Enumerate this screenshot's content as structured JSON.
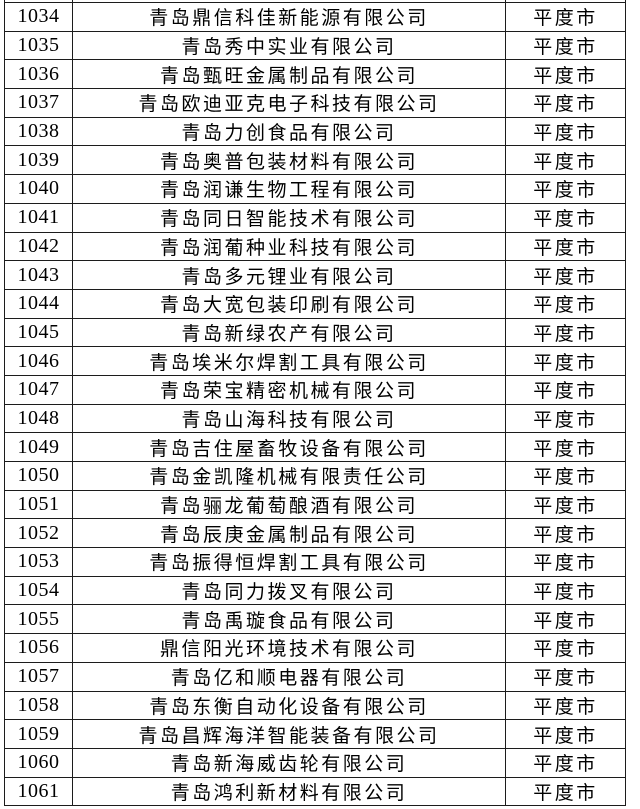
{
  "colors": {
    "background": "#ffffff",
    "border": "#1c1c1c",
    "text": "#000000"
  },
  "table": {
    "description": "company-list-table-slice",
    "rows": [
      {
        "id": "1034",
        "name": "青岛鼎信科佳新能源有限公司",
        "city": "平度市"
      },
      {
        "id": "1035",
        "name": "青岛秀中实业有限公司",
        "city": "平度市"
      },
      {
        "id": "1036",
        "name": "青岛甄旺金属制品有限公司",
        "city": "平度市"
      },
      {
        "id": "1037",
        "name": "青岛欧迪亚克电子科技有限公司",
        "city": "平度市"
      },
      {
        "id": "1038",
        "name": "青岛力创食品有限公司",
        "city": "平度市"
      },
      {
        "id": "1039",
        "name": "青岛奥普包装材料有限公司",
        "city": "平度市"
      },
      {
        "id": "1040",
        "name": "青岛润谦生物工程有限公司",
        "city": "平度市"
      },
      {
        "id": "1041",
        "name": "青岛同日智能技术有限公司",
        "city": "平度市"
      },
      {
        "id": "1042",
        "name": "青岛润葡种业科技有限公司",
        "city": "平度市"
      },
      {
        "id": "1043",
        "name": "青岛多元锂业有限公司",
        "city": "平度市"
      },
      {
        "id": "1044",
        "name": "青岛大宽包装印刷有限公司",
        "city": "平度市"
      },
      {
        "id": "1045",
        "name": "青岛新绿农产有限公司",
        "city": "平度市"
      },
      {
        "id": "1046",
        "name": "青岛埃米尔焊割工具有限公司",
        "city": "平度市"
      },
      {
        "id": "1047",
        "name": "青岛荣宝精密机械有限公司",
        "city": "平度市"
      },
      {
        "id": "1048",
        "name": "青岛山海科技有限公司",
        "city": "平度市"
      },
      {
        "id": "1049",
        "name": "青岛吉住屋畜牧设备有限公司",
        "city": "平度市"
      },
      {
        "id": "1050",
        "name": "青岛金凯隆机械有限责任公司",
        "city": "平度市"
      },
      {
        "id": "1051",
        "name": "青岛骊龙葡萄酿酒有限公司",
        "city": "平度市"
      },
      {
        "id": "1052",
        "name": "青岛辰庚金属制品有限公司",
        "city": "平度市"
      },
      {
        "id": "1053",
        "name": "青岛振得恒焊割工具有限公司",
        "city": "平度市"
      },
      {
        "id": "1054",
        "name": "青岛同力拨叉有限公司",
        "city": "平度市"
      },
      {
        "id": "1055",
        "name": "青岛禹璇食品有限公司",
        "city": "平度市"
      },
      {
        "id": "1056",
        "name": "鼎信阳光环境技术有限公司",
        "city": "平度市"
      },
      {
        "id": "1057",
        "name": "青岛亿和顺电器有限公司",
        "city": "平度市"
      },
      {
        "id": "1058",
        "name": "青岛东衡自动化设备有限公司",
        "city": "平度市"
      },
      {
        "id": "1059",
        "name": "青岛昌辉海洋智能装备有限公司",
        "city": "平度市"
      },
      {
        "id": "1060",
        "name": "青岛新海威齿轮有限公司",
        "city": "平度市"
      },
      {
        "id": "1061",
        "name": "青岛鸿利新材料有限公司",
        "city": "平度市"
      }
    ]
  }
}
